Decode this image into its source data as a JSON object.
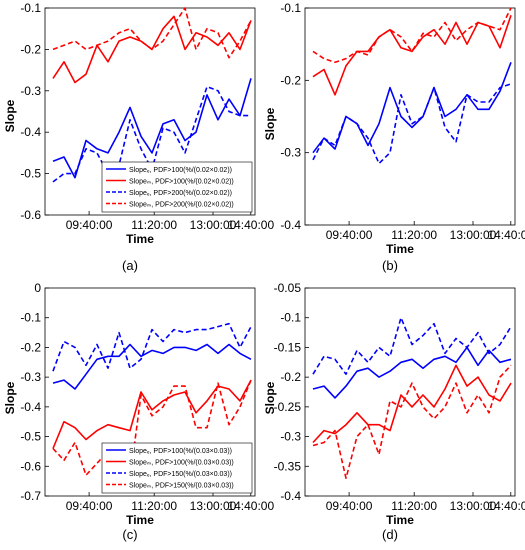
{
  "chart_data": [
    {
      "type": "line",
      "panel_label": "(a)",
      "xlabel": "Time",
      "ylabel": "Slope",
      "ylim": [
        -0.6,
        -0.1
      ],
      "yticks": [
        "-0.1",
        "-0.2",
        "-0.3",
        "-0.4",
        "-0.5",
        "-0.6"
      ],
      "xticks": [
        "09:40:00",
        "11:20:00",
        "13:00:00",
        "14:40:00"
      ],
      "legend_position": "bottom-right",
      "series": [
        {
          "name": "Slopeₑ, PDF>100(%/(0.02×0.02))",
          "color": "#0000ff",
          "dash": "solid",
          "values": [
            -0.47,
            -0.46,
            -0.51,
            -0.42,
            -0.44,
            -0.45,
            -0.4,
            -0.34,
            -0.41,
            -0.45,
            -0.38,
            -0.37,
            -0.42,
            -0.4,
            -0.31,
            -0.37,
            -0.32,
            -0.36,
            -0.27
          ]
        },
        {
          "name": "Slopeₘ, PDF>100(%/(0.02×0.02))",
          "color": "#ff0000",
          "dash": "solid",
          "values": [
            -0.27,
            -0.23,
            -0.28,
            -0.26,
            -0.19,
            -0.23,
            -0.18,
            -0.17,
            -0.18,
            -0.2,
            -0.15,
            -0.12,
            -0.2,
            -0.16,
            -0.17,
            -0.19,
            -0.16,
            -0.2,
            -0.13
          ]
        },
        {
          "name": "Slopeₑ, PDF>200(%/(0.02×0.02))",
          "color": "#0000ff",
          "dash": "dashed",
          "values": [
            -0.52,
            -0.5,
            -0.5,
            -0.44,
            -0.45,
            -0.5,
            -0.48,
            -0.37,
            -0.44,
            -0.49,
            -0.39,
            -0.4,
            -0.45,
            -0.37,
            -0.29,
            -0.3,
            -0.35,
            -0.36,
            -0.36
          ]
        },
        {
          "name": "Slopeₘ, PDF>200(%/(0.02×0.02))",
          "color": "#ff0000",
          "dash": "dashed",
          "values": [
            -0.2,
            -0.19,
            -0.18,
            -0.2,
            -0.19,
            -0.18,
            -0.16,
            -0.15,
            -0.18,
            -0.2,
            -0.18,
            -0.14,
            -0.1,
            -0.2,
            -0.15,
            -0.16,
            -0.22,
            -0.18,
            -0.13
          ]
        }
      ]
    },
    {
      "type": "line",
      "panel_label": "(b)",
      "xlabel": "Time",
      "ylabel": "Slope",
      "ylim": [
        -0.4,
        -0.1
      ],
      "yticks": [
        "-0.1",
        "-0.2",
        "-0.3",
        "-0.4"
      ],
      "xticks": [
        "09:40:00",
        "11:20:00",
        "13:00:00",
        "14:40:00"
      ],
      "legend_position": "none",
      "series": [
        {
          "name": "",
          "color": "#0000ff",
          "dash": "solid",
          "values": [
            -0.3,
            -0.28,
            -0.295,
            -0.25,
            -0.26,
            -0.29,
            -0.26,
            -0.21,
            -0.25,
            -0.265,
            -0.25,
            -0.21,
            -0.25,
            -0.24,
            -0.22,
            -0.24,
            -0.24,
            -0.215,
            -0.175
          ]
        },
        {
          "name": "",
          "color": "#ff0000",
          "dash": "solid",
          "values": [
            -0.195,
            -0.185,
            -0.22,
            -0.18,
            -0.16,
            -0.16,
            -0.14,
            -0.13,
            -0.155,
            -0.16,
            -0.14,
            -0.13,
            -0.15,
            -0.12,
            -0.15,
            -0.12,
            -0.125,
            -0.155,
            -0.11
          ]
        },
        {
          "name": "",
          "color": "#0000ff",
          "dash": "dashed",
          "values": [
            -0.31,
            -0.28,
            -0.29,
            -0.25,
            -0.26,
            -0.28,
            -0.315,
            -0.3,
            -0.22,
            -0.26,
            -0.25,
            -0.21,
            -0.265,
            -0.285,
            -0.22,
            -0.23,
            -0.23,
            -0.21,
            -0.205
          ]
        },
        {
          "name": "",
          "color": "#ff0000",
          "dash": "dashed",
          "values": [
            -0.16,
            -0.17,
            -0.175,
            -0.17,
            -0.16,
            -0.165,
            -0.14,
            -0.13,
            -0.14,
            -0.16,
            -0.135,
            -0.14,
            -0.12,
            -0.145,
            -0.13,
            -0.12,
            -0.125,
            -0.13,
            -0.1
          ]
        }
      ]
    },
    {
      "type": "line",
      "panel_label": "(c)",
      "xlabel": "Time",
      "ylabel": "Slope",
      "ylim": [
        -0.7,
        0
      ],
      "yticks": [
        "0",
        "-0.1",
        "-0.2",
        "-0.3",
        "-0.4",
        "-0.5",
        "-0.6",
        "-0.7"
      ],
      "xticks": [
        "09:40:00",
        "11:20:00",
        "13:00:00",
        "14:40:00"
      ],
      "legend_position": "bottom-right",
      "series": [
        {
          "name": "Slopeₑ, PDF>100(%/(0.03×0.03))",
          "color": "#0000ff",
          "dash": "solid",
          "values": [
            -0.32,
            -0.31,
            -0.34,
            -0.29,
            -0.24,
            -0.23,
            -0.23,
            -0.19,
            -0.23,
            -0.21,
            -0.22,
            -0.2,
            -0.2,
            -0.21,
            -0.19,
            -0.22,
            -0.19,
            -0.22,
            -0.24
          ]
        },
        {
          "name": "Slopeₘ, PDF>100(%/(0.03×0.03))",
          "color": "#ff0000",
          "dash": "solid",
          "values": [
            -0.54,
            -0.45,
            -0.47,
            -0.51,
            -0.48,
            -0.46,
            -0.47,
            -0.48,
            -0.35,
            -0.41,
            -0.38,
            -0.36,
            -0.35,
            -0.42,
            -0.38,
            -0.33,
            -0.34,
            -0.38,
            -0.31
          ]
        },
        {
          "name": "Slopeₑ, PDF>150(%/(0.03×0.03))",
          "color": "#0000ff",
          "dash": "dashed",
          "values": [
            -0.28,
            -0.18,
            -0.2,
            -0.26,
            -0.19,
            -0.27,
            -0.15,
            -0.27,
            -0.24,
            -0.14,
            -0.18,
            -0.14,
            -0.15,
            -0.14,
            -0.14,
            -0.13,
            -0.12,
            -0.2,
            -0.13
          ]
        },
        {
          "name": "Slopeₘ, PDF>150(%/(0.03×0.03))",
          "color": "#ff0000",
          "dash": "dashed",
          "values": [
            -0.54,
            -0.58,
            -0.52,
            -0.63,
            -0.59,
            -0.55,
            -0.55,
            -0.64,
            -0.36,
            -0.43,
            -0.4,
            -0.33,
            -0.33,
            -0.47,
            -0.47,
            -0.32,
            -0.46,
            -0.4,
            -0.31
          ]
        }
      ]
    },
    {
      "type": "line",
      "panel_label": "(d)",
      "xlabel": "Time",
      "ylabel": "Slope",
      "ylim": [
        -0.4,
        -0.05
      ],
      "yticks": [
        "-0.05",
        "-0.1",
        "-0.15",
        "-0.2",
        "-0.25",
        "-0.3",
        "-0.35",
        "-0.4"
      ],
      "xticks": [
        "09:40:00",
        "11:20:00",
        "13:00:00",
        "14:40:00"
      ],
      "legend_position": "none",
      "series": [
        {
          "name": "",
          "color": "#0000ff",
          "dash": "solid",
          "values": [
            -0.22,
            -0.215,
            -0.235,
            -0.215,
            -0.19,
            -0.185,
            -0.2,
            -0.19,
            -0.175,
            -0.17,
            -0.185,
            -0.17,
            -0.165,
            -0.175,
            -0.15,
            -0.18,
            -0.155,
            -0.175,
            -0.17
          ]
        },
        {
          "name": "",
          "color": "#ff0000",
          "dash": "solid",
          "values": [
            -0.31,
            -0.29,
            -0.295,
            -0.28,
            -0.26,
            -0.28,
            -0.28,
            -0.29,
            -0.23,
            -0.25,
            -0.23,
            -0.25,
            -0.22,
            -0.18,
            -0.215,
            -0.2,
            -0.23,
            -0.24,
            -0.21
          ]
        },
        {
          "name": "",
          "color": "#0000ff",
          "dash": "dashed",
          "values": [
            -0.195,
            -0.165,
            -0.17,
            -0.195,
            -0.155,
            -0.175,
            -0.15,
            -0.165,
            -0.1,
            -0.145,
            -0.13,
            -0.11,
            -0.16,
            -0.135,
            -0.15,
            -0.125,
            -0.16,
            -0.145,
            -0.115
          ]
        },
        {
          "name": "",
          "color": "#ff0000",
          "dash": "dashed",
          "values": [
            -0.315,
            -0.31,
            -0.29,
            -0.37,
            -0.3,
            -0.28,
            -0.33,
            -0.24,
            -0.25,
            -0.21,
            -0.25,
            -0.27,
            -0.25,
            -0.21,
            -0.26,
            -0.23,
            -0.26,
            -0.2,
            -0.18
          ]
        }
      ]
    }
  ]
}
